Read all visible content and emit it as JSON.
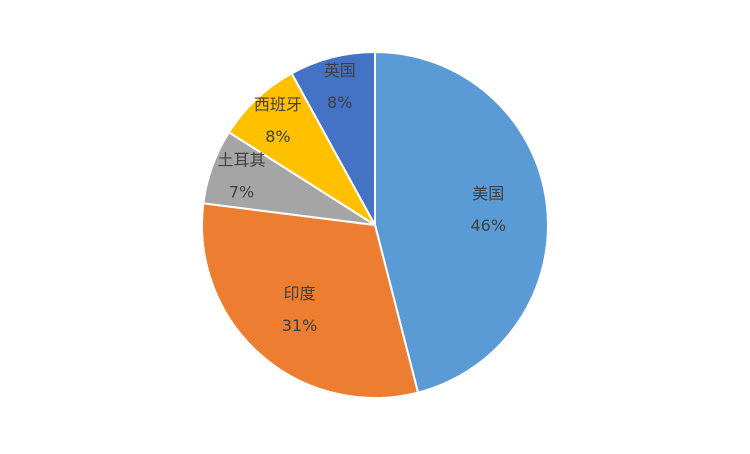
{
  "chart_data": {
    "type": "pie",
    "categories": [
      "美国",
      "印度",
      "土耳其",
      "西班牙",
      "英国"
    ],
    "values": [
      46,
      31,
      7,
      8,
      8
    ],
    "value_labels": [
      "46%",
      "31%",
      "7%",
      "8%",
      "8%"
    ],
    "colors": [
      "#5b9bd5",
      "#ed7d31",
      "#a5a5a5",
      "#ffc000",
      "#4472c4"
    ]
  }
}
